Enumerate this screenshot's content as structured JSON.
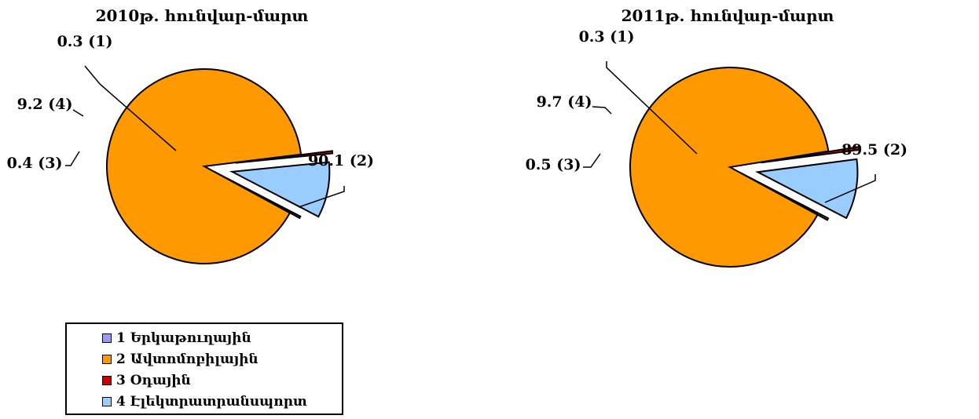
{
  "chart_data": [
    {
      "type": "pie",
      "title": "2010թ. հունվար-մարտ",
      "slices": [
        {
          "category": "1",
          "value": 0.3,
          "label": "0.3 (1)"
        },
        {
          "category": "2",
          "value": 90.1,
          "label": "90.1 (2)"
        },
        {
          "category": "3",
          "value": 0.4,
          "label": "0.4 (3)"
        },
        {
          "category": "4",
          "value": 9.2,
          "label": "9.2 (4)"
        }
      ]
    },
    {
      "type": "pie",
      "title": "2011թ. հունվար-մարտ",
      "slices": [
        {
          "category": "1",
          "value": 0.3,
          "label": "0.3 (1)"
        },
        {
          "category": "2",
          "value": 89.5,
          "label": "89.5 (2)"
        },
        {
          "category": "3",
          "value": 0.5,
          "label": "0.5 (3)"
        },
        {
          "category": "4",
          "value": 9.7,
          "label": "9.7 (4)"
        }
      ]
    }
  ],
  "legend": {
    "placement": "bottom-left",
    "items": [
      {
        "label": "1 Երկաթուղային",
        "color": "#9999ff"
      },
      {
        "label": "2 Ավտոմոբիլային",
        "color": "#ff9900"
      },
      {
        "label": "3 Օդային",
        "color": "#cc0000"
      },
      {
        "label": "4 Էլեկտրատրանսպորտ",
        "color": "#99ccff"
      }
    ]
  }
}
